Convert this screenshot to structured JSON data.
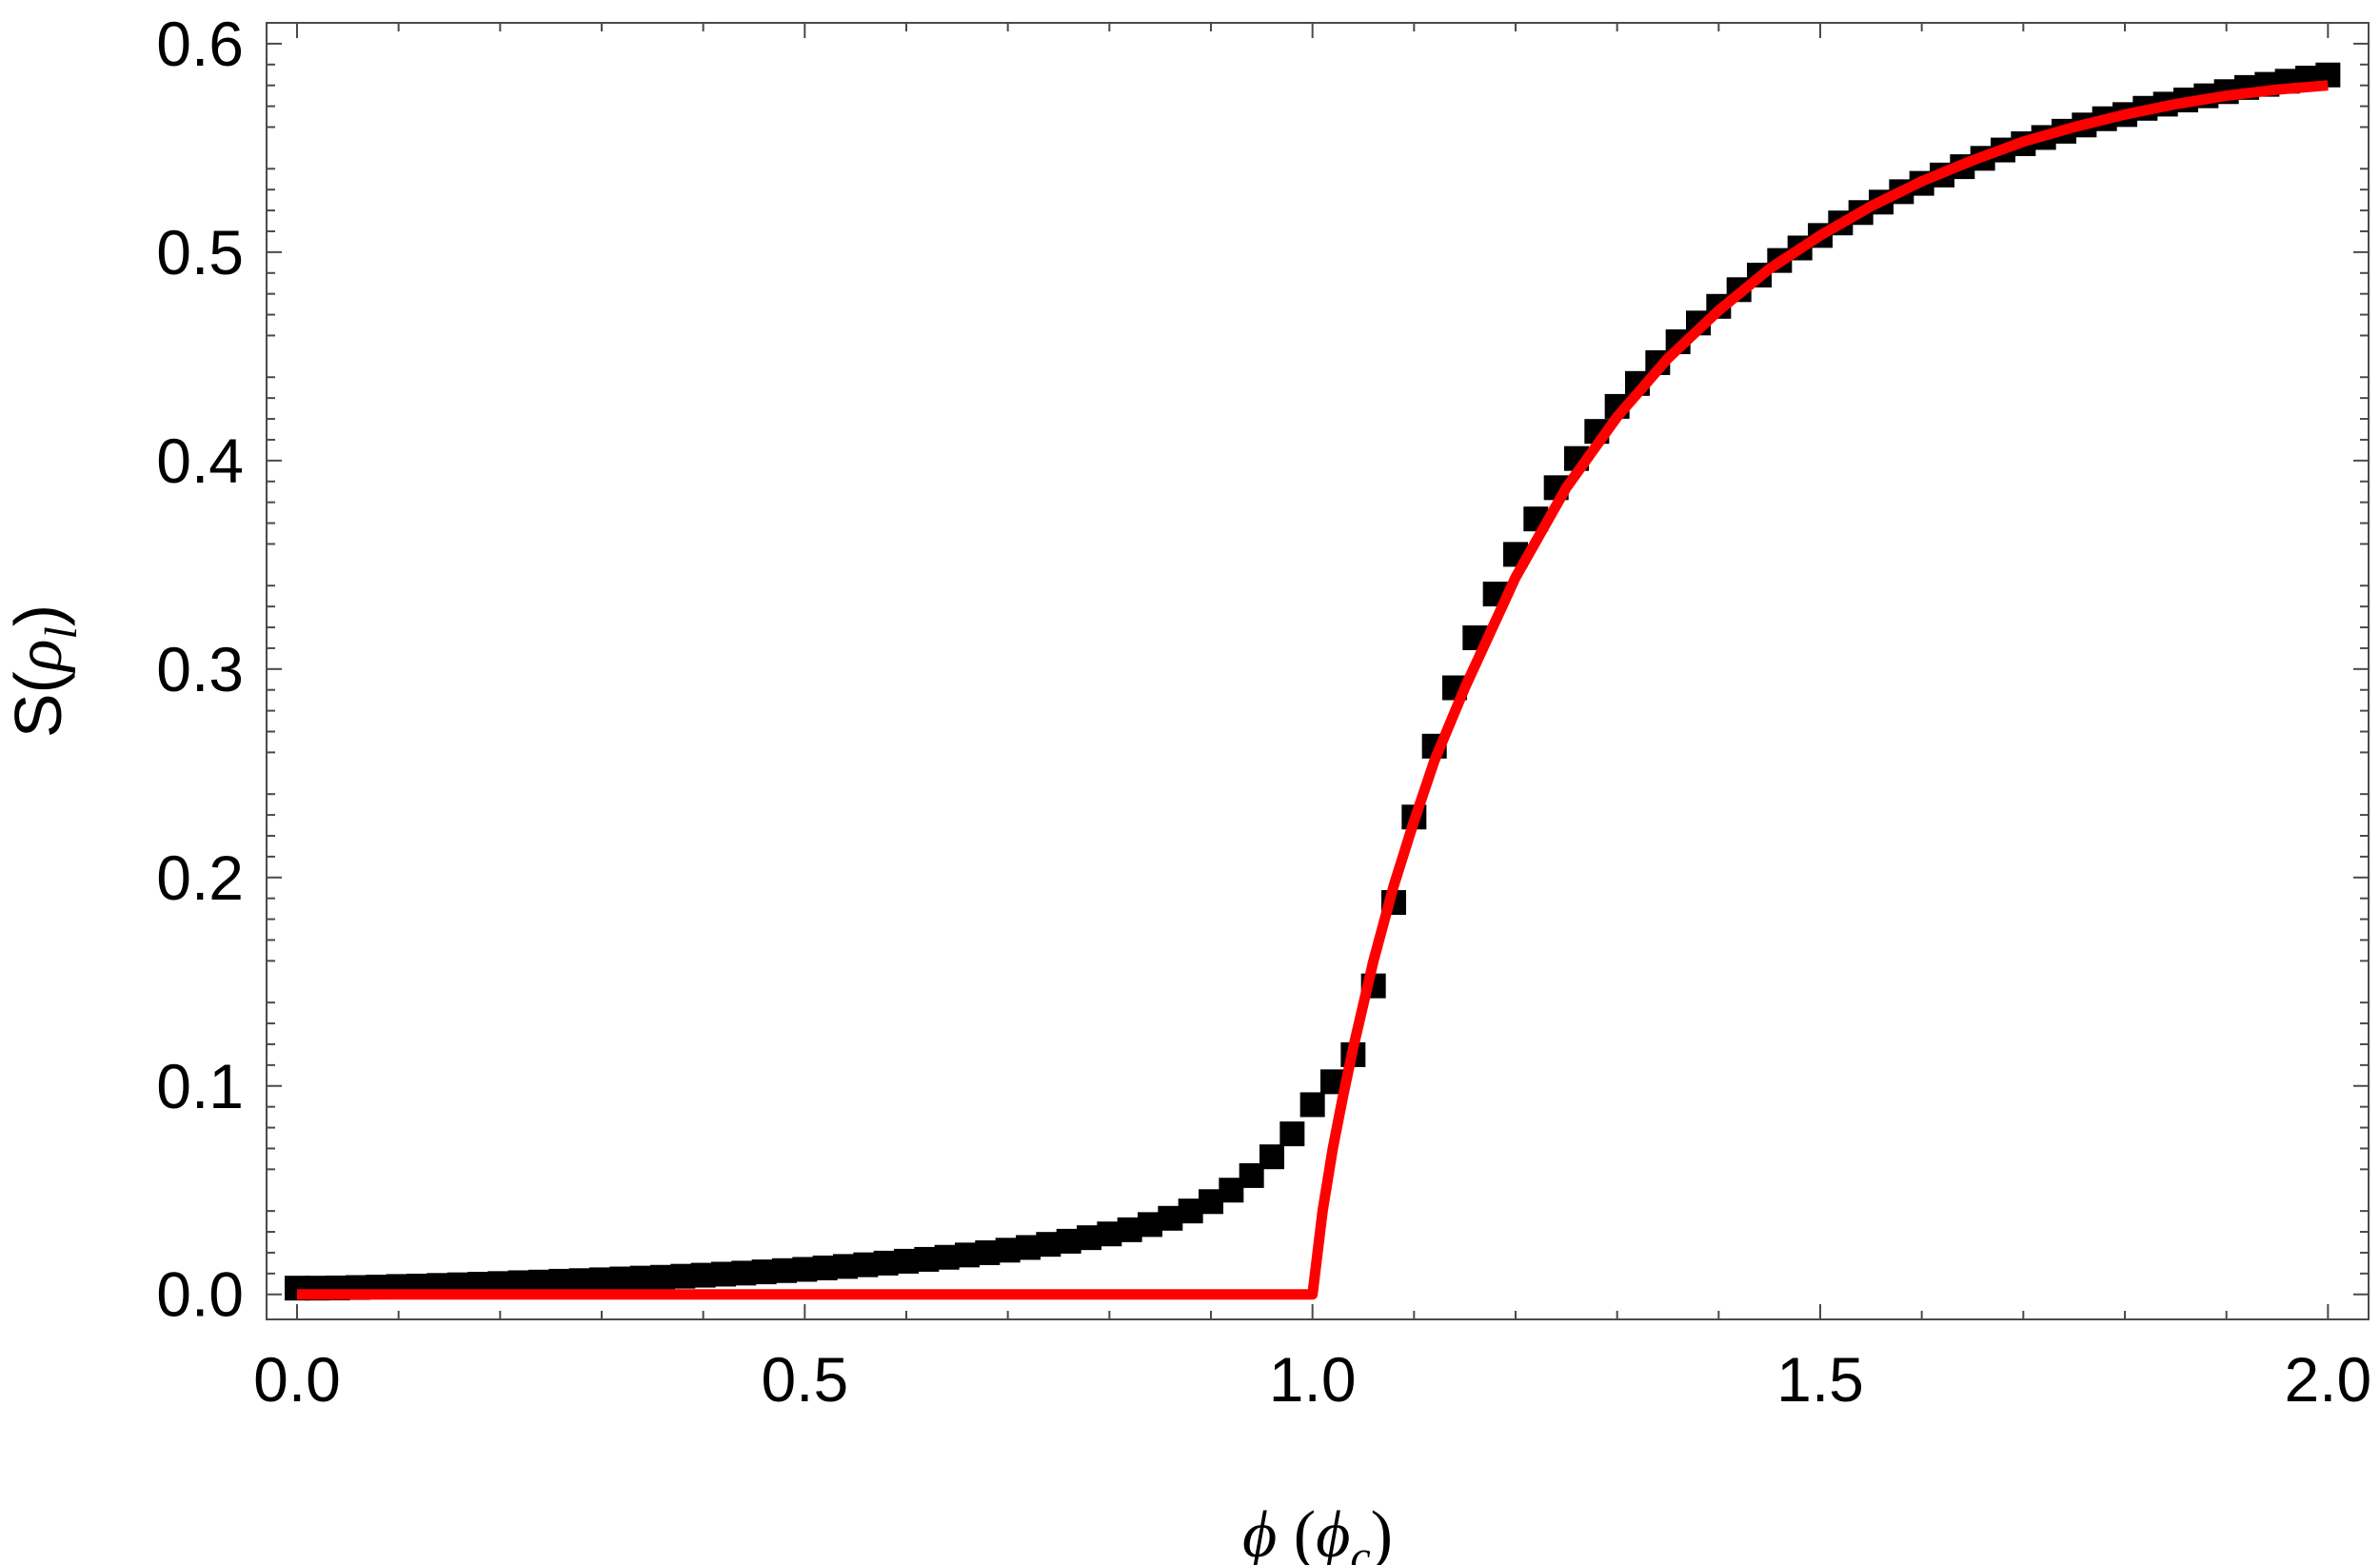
{
  "chart_data": {
    "type": "scatter",
    "xlabel": {
      "symbol": "ϕ",
      "unit_symbol": "ϕ",
      "unit_sub": "c"
    },
    "ylabel": {
      "func": "S",
      "symbol": "ρ",
      "sub": "l"
    },
    "xlim": [
      -0.03,
      2.04
    ],
    "ylim": [
      -0.012,
      0.61
    ],
    "xticks": [
      "0.0",
      "0.5",
      "1.0",
      "1.5",
      "2.0"
    ],
    "yticks": [
      "0.0",
      "0.1",
      "0.2",
      "0.3",
      "0.4",
      "0.5",
      "0.6"
    ],
    "xtick_values": [
      0,
      0.5,
      1.0,
      1.5,
      2.0
    ],
    "ytick_values": [
      0,
      0.1,
      0.2,
      0.3,
      0.4,
      0.5,
      0.6
    ],
    "grid": false,
    "series": [
      {
        "kind": "markers",
        "marker": "square",
        "color": "#000000",
        "x": [
          0.0,
          0.02,
          0.04,
          0.06,
          0.08,
          0.1,
          0.12,
          0.14,
          0.16,
          0.18,
          0.2,
          0.22,
          0.24,
          0.26,
          0.28,
          0.3,
          0.32,
          0.34,
          0.36,
          0.38,
          0.4,
          0.42,
          0.44,
          0.46,
          0.48,
          0.5,
          0.52,
          0.54,
          0.56,
          0.58,
          0.6,
          0.62,
          0.64,
          0.66,
          0.68,
          0.7,
          0.72,
          0.74,
          0.76,
          0.78,
          0.8,
          0.82,
          0.84,
          0.86,
          0.88,
          0.9,
          0.92,
          0.94,
          0.96,
          0.98,
          1.0,
          1.02,
          1.04,
          1.06,
          1.08,
          1.1,
          1.12,
          1.14,
          1.16,
          1.18,
          1.2,
          1.22,
          1.24,
          1.26,
          1.28,
          1.3,
          1.32,
          1.34,
          1.36,
          1.38,
          1.4,
          1.42,
          1.44,
          1.46,
          1.48,
          1.5,
          1.52,
          1.54,
          1.56,
          1.58,
          1.6,
          1.62,
          1.64,
          1.66,
          1.68,
          1.7,
          1.72,
          1.74,
          1.76,
          1.78,
          1.8,
          1.82,
          1.84,
          1.86,
          1.88,
          1.9,
          1.92,
          1.94,
          1.96,
          1.98,
          2.0
        ],
        "y": [
          0.003,
          0.003,
          0.0031,
          0.0033,
          0.0035,
          0.0038,
          0.004,
          0.0043,
          0.0046,
          0.0049,
          0.0052,
          0.0056,
          0.0059,
          0.0063,
          0.0066,
          0.007,
          0.0074,
          0.0078,
          0.0082,
          0.0087,
          0.0092,
          0.0097,
          0.0102,
          0.0108,
          0.0114,
          0.012,
          0.0127,
          0.0134,
          0.0142,
          0.015,
          0.0159,
          0.0168,
          0.0178,
          0.0189,
          0.02,
          0.0212,
          0.0225,
          0.024,
          0.0255,
          0.0272,
          0.029,
          0.031,
          0.0335,
          0.0365,
          0.04,
          0.0445,
          0.05,
          0.057,
          0.066,
          0.077,
          0.091,
          0.102,
          0.115,
          0.148,
          0.188,
          0.229,
          0.263,
          0.291,
          0.315,
          0.336,
          0.355,
          0.372,
          0.387,
          0.401,
          0.414,
          0.426,
          0.437,
          0.447,
          0.457,
          0.466,
          0.474,
          0.482,
          0.489,
          0.496,
          0.502,
          0.508,
          0.514,
          0.519,
          0.524,
          0.529,
          0.533,
          0.537,
          0.541,
          0.545,
          0.549,
          0.552,
          0.555,
          0.558,
          0.561,
          0.564,
          0.566,
          0.569,
          0.571,
          0.573,
          0.575,
          0.577,
          0.579,
          0.5805,
          0.582,
          0.5835,
          0.585
        ]
      },
      {
        "kind": "line",
        "color": "#ff0000",
        "x": [
          0.0,
          1.0,
          1.005,
          1.01,
          1.02,
          1.03,
          1.04,
          1.06,
          1.08,
          1.1,
          1.12,
          1.15,
          1.2,
          1.25,
          1.3,
          1.35,
          1.4,
          1.45,
          1.5,
          1.55,
          1.6,
          1.65,
          1.7,
          1.75,
          1.8,
          1.85,
          1.9,
          1.95,
          2.0
        ],
        "y": [
          0.0,
          0.0,
          0.02,
          0.04,
          0.07,
          0.095,
          0.118,
          0.16,
          0.196,
          0.227,
          0.256,
          0.291,
          0.344,
          0.387,
          0.421,
          0.449,
          0.472,
          0.492,
          0.508,
          0.522,
          0.534,
          0.544,
          0.553,
          0.56,
          0.566,
          0.571,
          0.575,
          0.578,
          0.58
        ]
      }
    ]
  }
}
